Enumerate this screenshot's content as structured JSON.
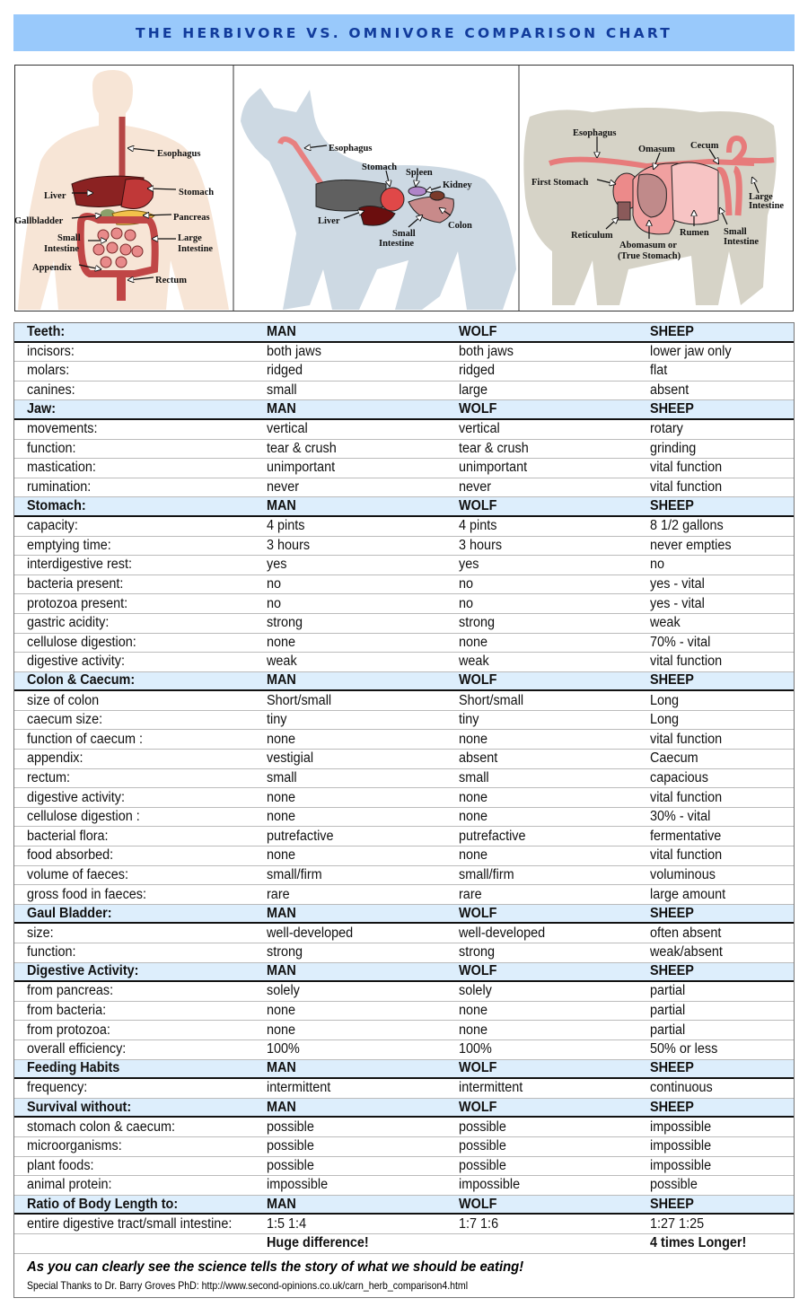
{
  "title": "THE HERBIVORE VS. OMNIVORE COMPARISON CHART",
  "colors": {
    "title_bg": "#99c9fb",
    "title_text": "#123c9c",
    "header_row_bg": "#ddeefc"
  },
  "illustrations": {
    "human": {
      "esophagus": "Esophagus",
      "stomach": "Stomach",
      "liver": "Liver",
      "pancreas": "Pancreas",
      "gallbladder": "Gallbladder",
      "small_intestine_1": "Small",
      "small_intestine_2": "Intestine",
      "large_intestine_1": "Large",
      "large_intestine_2": "Intestine",
      "appendix": "Appendix",
      "rectum": "Rectum"
    },
    "wolf": {
      "esophagus": "Esophagus",
      "stomach": "Stomach",
      "spleen": "Spleen",
      "kidney": "Kidney",
      "liver": "Liver",
      "colon": "Colon",
      "small_intestine_1": "Small",
      "small_intestine_2": "Intestine"
    },
    "sheep": {
      "esophagus": "Esophagus",
      "omasum": "Omasum",
      "cecum": "Cecum",
      "first_stomach": "First Stomach",
      "large_intestine_1": "Large",
      "large_intestine_2": "Intestine",
      "reticulum": "Reticulum",
      "rumen": "Rumen",
      "small_intestine_1": "Small",
      "small_intestine_2": "Intestine",
      "abomasum_1": "Abomasum or",
      "abomasum_2": "(True Stomach)"
    }
  },
  "sections": [
    {
      "header": [
        "Teeth:",
        "MAN",
        "WOLF",
        "SHEEP"
      ],
      "rows": [
        [
          "incisors:",
          "both jaws",
          "both jaws",
          "lower jaw only"
        ],
        [
          "molars:",
          "ridged",
          "ridged",
          "flat"
        ],
        [
          "canines:",
          "small",
          "large",
          "absent"
        ]
      ]
    },
    {
      "header": [
        "Jaw:",
        "MAN",
        "WOLF",
        "SHEEP"
      ],
      "rows": [
        [
          "movements:",
          "vertical",
          " vertical",
          "rotary"
        ],
        [
          "function:",
          "tear & crush",
          "tear & crush",
          "grinding"
        ],
        [
          "mastication:",
          "unimportant",
          "unimportant",
          "vital function"
        ],
        [
          "rumination:",
          "never",
          "never",
          "vital function"
        ]
      ]
    },
    {
      "header": [
        "Stomach:",
        "MAN",
        "WOLF",
        "SHEEP"
      ],
      "rows": [
        [
          "capacity:",
          "4 pints",
          "4 pints",
          "8 1/2 gallons"
        ],
        [
          "emptying time:",
          "3 hours",
          "3 hours",
          "never empties"
        ],
        [
          "interdigestive rest:",
          "yes",
          "yes",
          "no"
        ],
        [
          "bacteria present:",
          "no",
          "no",
          "yes - vital"
        ],
        [
          "protozoa present:",
          "no",
          "no",
          "yes - vital"
        ],
        [
          "gastric acidity:",
          "strong",
          "strong",
          "weak"
        ],
        [
          "cellulose digestion:",
          "none",
          "none",
          "70% - vital"
        ],
        [
          "digestive activity:",
          "weak",
          "weak",
          "vital function"
        ]
      ]
    },
    {
      "header": [
        "Colon & Caecum:",
        "MAN",
        "WOLF",
        "SHEEP"
      ],
      "rows": [
        [
          "size of colon",
          "Short/small",
          "Short/small",
          "Long"
        ],
        [
          "caecum size:",
          "tiny",
          "tiny",
          "Long"
        ],
        [
          "function of caecum :",
          "none",
          "none",
          "vital function"
        ],
        [
          "appendix:",
          "vestigial",
          "absent",
          "Caecum"
        ],
        [
          "rectum:",
          "small",
          "small",
          "capacious"
        ],
        [
          "digestive activity:",
          "none",
          "none",
          "vital function"
        ],
        [
          "cellulose digestion :",
          "none",
          "none",
          "30% - vital"
        ],
        [
          "bacterial flora:",
          "putrefactive",
          "putrefactive",
          "fermentative"
        ],
        [
          "food absorbed:",
          "none",
          "none",
          "vital function"
        ],
        [
          "volume of faeces:",
          "small/firm",
          "small/firm",
          "voluminous"
        ],
        [
          "gross food in faeces:",
          "rare",
          "rare",
          "large amount"
        ]
      ]
    },
    {
      "header": [
        "Gaul Bladder:",
        "MAN",
        "WOLF",
        "SHEEP"
      ],
      "rows": [
        [
          "size:",
          "well-developed",
          "well-developed",
          "often absent"
        ],
        [
          "function:",
          "strong",
          " strong",
          "weak/absent"
        ]
      ]
    },
    {
      "header": [
        "Digestive Activity:",
        "MAN",
        "WOLF",
        "SHEEP"
      ],
      "rows": [
        [
          "from pancreas:",
          "solely",
          "solely",
          "partial"
        ],
        [
          "from bacteria:",
          "none",
          "none",
          "partial"
        ],
        [
          "from protozoa:",
          "none",
          "none",
          "partial"
        ],
        [
          "overall efficiency:",
          "100%",
          "100%",
          "50% or less"
        ]
      ]
    },
    {
      "header": [
        "Feeding Habits",
        "MAN",
        "WOLF",
        "SHEEP"
      ],
      "rows": [
        [
          "frequency:",
          "intermittent",
          "intermittent",
          "continuous"
        ]
      ]
    },
    {
      "header": [
        "Survival without:",
        "MAN",
        "WOLF",
        "SHEEP"
      ],
      "rows": [
        [
          "stomach colon & caecum:",
          "possible",
          "possible",
          "impossible"
        ],
        [
          "microorganisms:",
          "possible",
          "possible",
          "impossible"
        ],
        [
          "plant foods:",
          "possible",
          "possible",
          "impossible"
        ],
        [
          "animal protein:",
          "impossible",
          "impossible",
          "possible"
        ]
      ]
    },
    {
      "header": [
        "Ratio of Body Length  to:",
        "MAN",
        "WOLF",
        "SHEEP"
      ],
      "rows": [
        [
          "entire digestive tract/small intestine:",
          " 1:5  1:4",
          " 1:7  1:6",
          "1:27  1:25"
        ]
      ],
      "summary": [
        "",
        "Huge difference!",
        "",
        "4 times Longer!"
      ]
    }
  ],
  "footer": {
    "slogan": "As you can clearly see the science tells the story of what we should be eating!",
    "thanks": "Special Thanks to Dr. Barry Groves PhD: http://www.second-opinions.co.uk/carn_herb_comparison4.html"
  }
}
